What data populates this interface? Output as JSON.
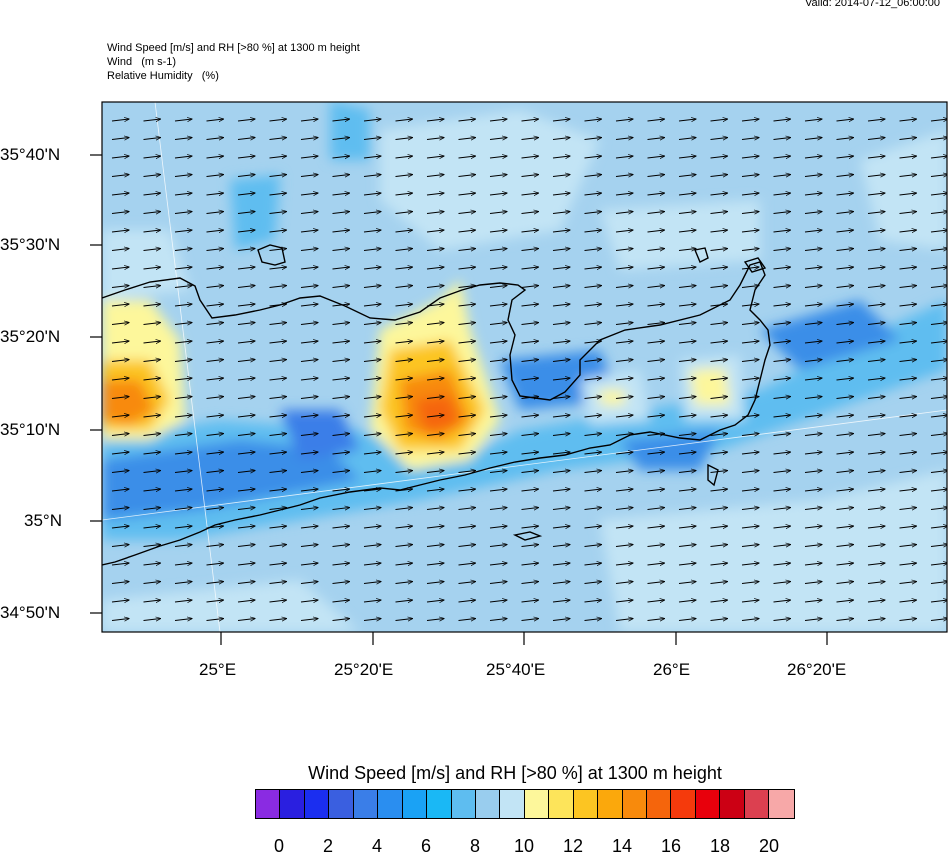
{
  "valid_time": "Valid: 2014-07-12_06:00:00",
  "titles": {
    "line1": "Wind Speed [m/s] and RH [>80 %] at 1300 m height",
    "line2": "Wind   (m s-1)",
    "line3": "Relative Humidity   (%)"
  },
  "axes": {
    "lat_labels": [
      "35°40'N",
      "35°30'N",
      "35°20'N",
      "35°10'N",
      "35°N",
      "34°50'N"
    ],
    "lon_labels": [
      "25°E",
      "25°20'E",
      "25°40'E",
      "26°E",
      "26°20'E"
    ]
  },
  "colorbar": {
    "title": "Wind Speed [m/s] and RH [>80 %] at 1300 m height",
    "colors": [
      "#8a2be2",
      "#2a1fe0",
      "#1b2ef0",
      "#3a5fe0",
      "#3a7ee8",
      "#2a8ef0",
      "#1aa2f5",
      "#1ab8f5",
      "#5ebdf0",
      "#99cdee",
      "#c2e4f5",
      "#fdf79b",
      "#fde45a",
      "#fcc522",
      "#fba80c",
      "#f88a0c",
      "#f5650c",
      "#f53a0c",
      "#e8000c",
      "#cc0014",
      "#dc4050",
      "#f7a8a8"
    ],
    "tick_labels": [
      "0",
      "2",
      "4",
      "6",
      "8",
      "10",
      "12",
      "14",
      "16",
      "18",
      "20"
    ]
  },
  "map": {
    "background_color": "#a5d2ef",
    "wind_direction": "west-southwest (eastward arrows)"
  }
}
